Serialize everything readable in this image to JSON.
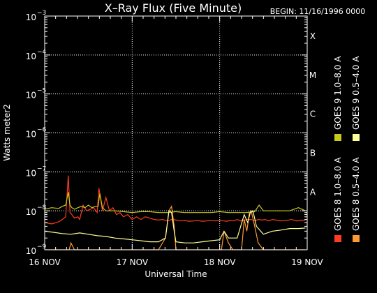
{
  "chart_data": {
    "type": "line",
    "title": "X–Ray Flux (Five Minute)",
    "begin_label": "BEGIN: 11/16/1996 0000",
    "xlabel": "Universal Time",
    "ylabel": "Watts meter2",
    "y_scale": "log",
    "ylim": [
      1e-09,
      0.001
    ],
    "y_ticks": [
      {
        "base": "10",
        "exp": "−9"
      },
      {
        "base": "10",
        "exp": "−8"
      },
      {
        "base": "10",
        "exp": "−7"
      },
      {
        "base": "10",
        "exp": "−6"
      },
      {
        "base": "10",
        "exp": "−5"
      },
      {
        "base": "10",
        "exp": "−4"
      },
      {
        "base": "10",
        "exp": "−3"
      }
    ],
    "x_start": "1996-11-16",
    "x_ticks": [
      "16 NOV",
      "17 NOV",
      "18 NOV",
      "19 NOV"
    ],
    "xlim_days": [
      0,
      3
    ],
    "grid": true,
    "flare_classes": [
      {
        "label": "A",
        "value": 1e-08
      },
      {
        "label": "B",
        "value": 1e-07
      },
      {
        "label": "C",
        "value": 1e-06
      },
      {
        "label": "M",
        "value": 1e-05
      },
      {
        "label": "X",
        "value": 0.0001
      }
    ],
    "legend_placement": "right",
    "series": [
      {
        "name": "GOES 8 1.0–8.0 A",
        "color": "#ff3c1e",
        "x": [
          0.0,
          0.08,
          0.16,
          0.2,
          0.24,
          0.27,
          0.29,
          0.31,
          0.34,
          0.38,
          0.4,
          0.44,
          0.48,
          0.52,
          0.56,
          0.6,
          0.62,
          0.66,
          0.7,
          0.74,
          0.78,
          0.82,
          0.86,
          0.9,
          0.95,
          1.0,
          1.05,
          1.1,
          1.15,
          1.2,
          1.25,
          1.3,
          1.35,
          1.4,
          1.45,
          1.5,
          1.55,
          1.6,
          1.65,
          1.7,
          1.75,
          1.8,
          1.85,
          1.9,
          1.95,
          2.0,
          2.05,
          2.08,
          2.12,
          2.16,
          2.2,
          2.24,
          2.28,
          2.32,
          2.36,
          2.4,
          2.44,
          2.48,
          2.52,
          2.56,
          2.6,
          2.64,
          2.7,
          2.76,
          2.82,
          2.88,
          2.94,
          2.98
        ],
        "values": [
          5e-09,
          4.6e-09,
          5.2e-09,
          6e-09,
          7e-09,
          8e-08,
          9e-09,
          8e-09,
          6.5e-09,
          7e-09,
          6e-09,
          1.4e-08,
          1e-08,
          1.1e-08,
          1.2e-08,
          9e-09,
          3.8e-08,
          1e-08,
          2.2e-08,
          1e-08,
          1.2e-08,
          8e-09,
          9e-09,
          7e-09,
          8e-09,
          6e-09,
          7e-09,
          6e-09,
          7e-09,
          6.5e-09,
          6e-09,
          5.8e-09,
          6e-09,
          5.5e-09,
          6e-09,
          5.8e-09,
          5.5e-09,
          5.6e-09,
          5.4e-09,
          5.5e-09,
          5.6e-09,
          5.4e-09,
          5.5e-09,
          5.6e-09,
          5.5e-09,
          5.6e-09,
          5.5e-09,
          5.4e-09,
          5.6e-09,
          5.5e-09,
          6e-09,
          5.5e-09,
          5.8e-09,
          6e-09,
          6e-09,
          5.5e-09,
          6e-09,
          5.8e-09,
          6e-09,
          5.5e-09,
          6e-09,
          5.8e-09,
          5.5e-09,
          5.6e-09,
          6e-09,
          5.5e-09,
          5.8e-09,
          5.6e-09
        ]
      },
      {
        "name": "GOES 8 0.5–4.0 A",
        "color": "#ff9933",
        "x": [
          0.0,
          0.2,
          0.28,
          0.3,
          0.34,
          0.4,
          0.6,
          0.8,
          1.0,
          1.1,
          1.2,
          1.3,
          1.38,
          1.42,
          1.45,
          1.48,
          1.5,
          1.55,
          1.6,
          1.7,
          1.8,
          1.9,
          2.0,
          2.02,
          2.05,
          2.1,
          2.15,
          2.2,
          2.25,
          2.28,
          2.31,
          2.34,
          2.36,
          2.4,
          2.44,
          2.5,
          2.6,
          2.7,
          2.8,
          2.9,
          2.98
        ],
        "values": [
          1e-09,
          1e-09,
          1e-09,
          1.5e-09,
          1e-09,
          1e-09,
          1e-09,
          1e-09,
          1e-09,
          1e-09,
          1e-09,
          1e-09,
          2e-09,
          1e-08,
          1.3e-08,
          4e-09,
          1e-09,
          1e-09,
          1e-09,
          1e-09,
          1e-09,
          1e-09,
          1e-09,
          1e-09,
          3e-09,
          1.5e-09,
          1e-09,
          1e-09,
          1e-09,
          6e-09,
          3e-09,
          9e-09,
          1e-08,
          4e-09,
          1.5e-09,
          1e-09,
          1e-09,
          1e-09,
          1e-09,
          1e-09,
          1e-09
        ]
      },
      {
        "name": "GOES 9 1.0–8.0 A",
        "color": "#c8c81e",
        "x": [
          0.0,
          0.08,
          0.16,
          0.2,
          0.24,
          0.27,
          0.29,
          0.31,
          0.34,
          0.38,
          0.42,
          0.46,
          0.5,
          0.54,
          0.58,
          0.61,
          0.63,
          0.66,
          0.7,
          0.75,
          0.8,
          0.9,
          1.0,
          1.1,
          1.2,
          1.3,
          1.4,
          1.5,
          1.6,
          1.7,
          1.8,
          1.9,
          2.0,
          2.1,
          2.2,
          2.3,
          2.4,
          2.45,
          2.5,
          2.6,
          2.7,
          2.8,
          2.9,
          2.98
        ],
        "values": [
          1.1e-08,
          1.2e-08,
          1.15e-08,
          1.3e-08,
          1.4e-08,
          3e-08,
          1.4e-08,
          1.2e-08,
          1.1e-08,
          1.2e-08,
          1.3e-08,
          1.2e-08,
          1.4e-08,
          1.2e-08,
          1.3e-08,
          1.3e-08,
          2.8e-08,
          1.2e-08,
          1e-08,
          1e-08,
          1e-08,
          9.5e-09,
          9e-09,
          9.5e-09,
          9.5e-09,
          9e-09,
          9e-09,
          9.5e-09,
          9e-09,
          9e-09,
          9e-09,
          9e-09,
          9.5e-09,
          9e-09,
          9e-09,
          9e-09,
          9.5e-09,
          1.4e-08,
          1e-08,
          1e-08,
          1e-08,
          1e-08,
          1.2e-08,
          1e-08
        ]
      },
      {
        "name": "GOES 9 0.5–4.0 A",
        "color": "#ffff99",
        "x": [
          0.0,
          0.1,
          0.2,
          0.3,
          0.4,
          0.5,
          0.6,
          0.7,
          0.8,
          0.9,
          1.0,
          1.1,
          1.2,
          1.3,
          1.38,
          1.42,
          1.45,
          1.48,
          1.5,
          1.6,
          1.7,
          1.8,
          1.9,
          2.0,
          2.05,
          2.1,
          2.2,
          2.28,
          2.32,
          2.35,
          2.38,
          2.42,
          2.5,
          2.6,
          2.7,
          2.8,
          2.9,
          2.98
        ],
        "values": [
          3e-09,
          2.8e-09,
          2.6e-09,
          2.5e-09,
          2.7e-09,
          2.5e-09,
          2.3e-09,
          2.2e-09,
          2e-09,
          1.9e-09,
          1.8e-09,
          1.7e-09,
          1.6e-09,
          1.6e-09,
          2e-09,
          1e-08,
          9e-09,
          3e-09,
          1.6e-09,
          1.5e-09,
          1.5e-09,
          1.6e-09,
          1.7e-09,
          1.8e-09,
          3e-09,
          2e-09,
          2e-09,
          8e-09,
          5e-09,
          9e-09,
          1e-08,
          4e-09,
          2.5e-09,
          3e-09,
          3.2e-09,
          3.5e-09,
          3.5e-09,
          3.6e-09
        ]
      }
    ]
  }
}
